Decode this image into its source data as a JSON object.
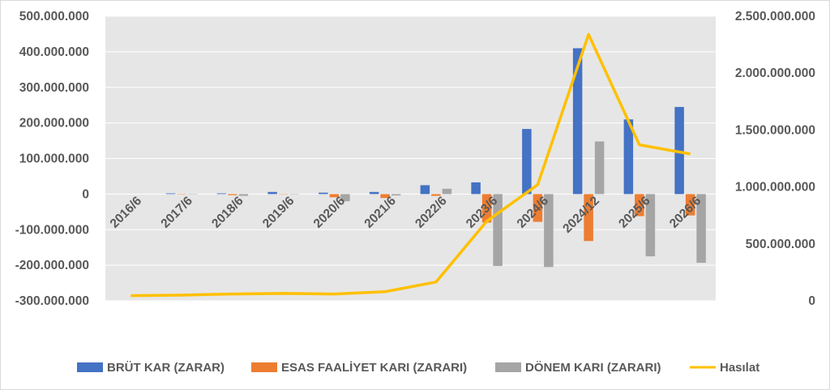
{
  "chart_data": {
    "type": "bar",
    "categories": [
      "2016/6",
      "2017/6",
      "2018/6",
      "2019/6",
      "2020/6",
      "2021/6",
      "2022/6",
      "2023/6",
      "2024/6",
      "2024/12",
      "2025/6",
      "2026/6"
    ],
    "series": [
      {
        "name": "BRÜT KAR (ZARAR)",
        "type": "bar",
        "axis": "left",
        "color": "#4472C4",
        "values": [
          0,
          2000000,
          2000000,
          6000000,
          4000000,
          6000000,
          25000000,
          33000000,
          183000000,
          410000000,
          210000000,
          245000000
        ]
      },
      {
        "name": "ESAS FAALİYET KARI (ZARARI)",
        "type": "bar",
        "axis": "left",
        "color": "#ED7D31",
        "values": [
          0,
          -1000000,
          -3000000,
          -1000000,
          -9000000,
          -11000000,
          -5000000,
          -80000000,
          -78000000,
          -132000000,
          -62000000,
          -60000000
        ]
      },
      {
        "name": "DÖNEM KARI (ZARARI)",
        "type": "bar",
        "axis": "left",
        "color": "#A5A5A5",
        "values": [
          0,
          -1000000,
          -5000000,
          -1000000,
          -20000000,
          -4000000,
          15000000,
          -202000000,
          -205000000,
          148000000,
          -175000000,
          -193000000
        ]
      },
      {
        "name": "Hasılat",
        "type": "line",
        "axis": "right",
        "color": "#FFC000",
        "values": [
          45000000,
          50000000,
          60000000,
          65000000,
          60000000,
          80000000,
          165000000,
          700000000,
          1020000000,
          2340000000,
          1370000000,
          1290000000
        ]
      }
    ],
    "y_left": {
      "min": -300000000,
      "max": 500000000,
      "step": 100000000,
      "tick_labels": [
        "-300.000.000",
        "-200.000.000",
        "-100.000.000",
        "0",
        "100.000.000",
        "200.000.000",
        "300.000.000",
        "400.000.000",
        "500.000.000"
      ]
    },
    "y_right": {
      "min": 0,
      "max": 2500000000,
      "step": 500000000,
      "tick_labels": [
        "0",
        "500.000.000",
        "1.000.000.000",
        "1.500.000.000",
        "2.000.000.000",
        "2.500.000.000"
      ]
    },
    "grid": true,
    "plot_background": "#E6E6E6",
    "legend_position": "bottom"
  }
}
